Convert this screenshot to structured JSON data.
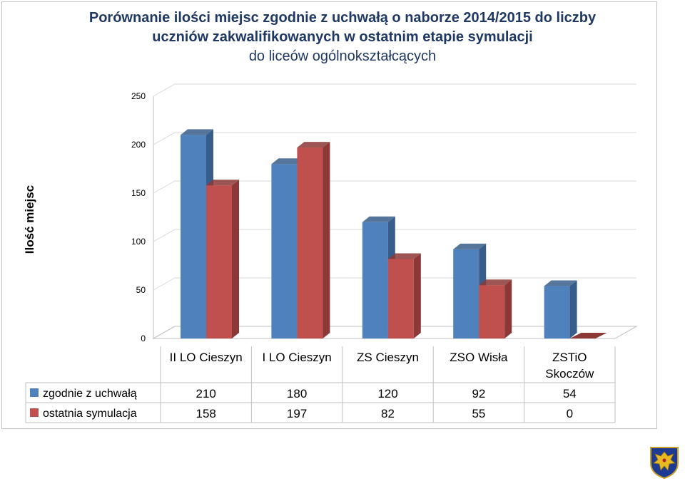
{
  "chart_data": {
    "type": "bar",
    "title_lines": [
      "Porównanie ilości miejsc zgodnie z uchwałą o naborze 2014/2015 do liczby",
      "uczniów zakwalifikowanych w ostatnim etapie symulacji",
      "do liceów ogólnokształcących"
    ],
    "ylabel": "Ilość miejsc",
    "xlabel": "",
    "ylim": [
      0,
      250
    ],
    "yticks": [
      "0",
      "50",
      "100",
      "150",
      "200",
      "250"
    ],
    "categories": [
      [
        "II LO Cieszyn"
      ],
      [
        "I LO Cieszyn"
      ],
      [
        "ZS Cieszyn"
      ],
      [
        "ZSO Wisła"
      ],
      [
        "ZSTiO",
        "Skoczów"
      ]
    ],
    "series": [
      {
        "name": "zgodnie z uchwałą",
        "color": "#4f81bd",
        "side": "#385d8a",
        "values": [
          210,
          180,
          120,
          92,
          54
        ]
      },
      {
        "name": "ostatnia symulacja",
        "color": "#c0504d",
        "side": "#8c3836",
        "values": [
          158,
          197,
          82,
          55,
          0
        ]
      }
    ],
    "grid": true,
    "legend": "data-table"
  },
  "logo_icon": "coat-of-arms-icon"
}
